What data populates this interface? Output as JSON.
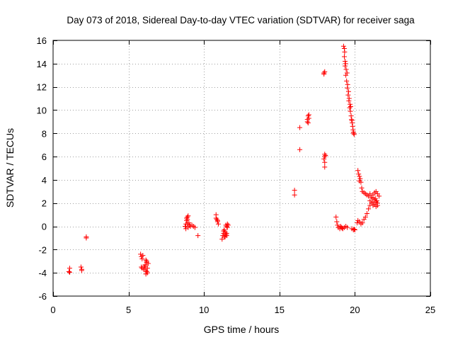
{
  "chart_data": {
    "type": "scatter",
    "title": "Day 073 of 2018, Sidereal Day-to-day VTEC variation (SDTVAR) for receiver saga",
    "xlabel": "GPS time / hours",
    "ylabel": "SDTVAR / TECUs",
    "xlim": [
      0,
      25
    ],
    "ylim": [
      -6,
      16
    ],
    "xticks": [
      0,
      5,
      10,
      15,
      20,
      25
    ],
    "yticks": [
      -6,
      -4,
      -2,
      0,
      2,
      4,
      6,
      8,
      10,
      12,
      14,
      16
    ],
    "xtick_labels": [
      "0",
      "5",
      "10",
      "15",
      "20",
      "25"
    ],
    "ytick_labels": [
      "-6",
      "-4",
      "-2",
      "0",
      "2",
      "4",
      "6",
      "8",
      "10",
      "12",
      "14",
      "16"
    ],
    "grid": true,
    "marker": "+",
    "color": "#ff0000",
    "series": [
      {
        "name": "SDTVAR",
        "x": [
          1.05,
          1.1,
          1.1,
          1.85,
          1.9,
          1.9,
          2.2,
          2.2,
          5.8,
          5.85,
          5.9,
          5.95,
          5.85,
          5.9,
          6.0,
          6.05,
          6.1,
          6.15,
          6.2,
          6.25,
          6.15,
          6.2,
          6.3,
          6.25,
          6.1,
          6.15,
          6.2,
          8.75,
          8.8,
          8.85,
          8.9,
          8.95,
          9.0,
          9.05,
          9.1,
          9.2,
          9.3,
          9.4,
          8.85,
          8.9,
          8.95,
          8.8,
          8.9,
          9.6,
          10.8,
          10.85,
          10.9,
          10.95,
          10.8,
          10.9,
          11.2,
          11.25,
          11.3,
          11.35,
          11.4,
          11.45,
          11.5,
          11.55,
          11.6,
          11.4,
          11.5,
          11.3,
          11.35,
          11.45,
          11.5,
          11.55,
          16.0,
          16.0,
          16.35,
          16.35,
          16.85,
          16.9,
          16.95,
          16.9,
          16.85,
          16.95,
          17.95,
          18.0,
          17.95,
          18.0,
          18.0,
          17.95,
          18.0,
          18.0,
          18.05,
          18.75,
          18.8,
          18.85,
          18.9,
          19.0,
          19.1,
          19.2,
          19.3,
          19.4,
          19.5,
          19.05,
          19.15,
          19.25,
          19.3,
          19.35,
          19.4,
          19.45,
          19.5,
          19.55,
          19.6,
          19.65,
          19.7,
          19.75,
          19.8,
          19.85,
          19.9,
          19.95,
          19.3,
          19.32,
          19.35,
          19.38,
          19.42,
          19.48,
          19.52,
          19.58,
          19.62,
          19.68,
          19.72,
          19.78,
          19.82,
          19.88,
          19.92,
          19.8,
          19.9,
          19.95,
          20.0,
          20.2,
          20.25,
          20.3,
          20.35,
          20.4,
          20.3,
          20.45,
          20.5,
          20.6,
          20.7,
          20.8,
          20.9,
          21.0,
          21.1,
          21.2,
          20.15,
          20.2,
          20.3,
          20.4,
          20.5,
          20.6,
          20.7,
          20.8,
          20.9,
          21.0,
          21.1,
          21.2,
          21.3,
          21.4,
          21.5,
          21.0,
          21.1,
          21.2,
          21.3,
          21.4,
          21.5,
          21.6,
          21.3,
          21.4,
          21.5,
          21.2,
          21.35,
          21.45
        ],
        "y": [
          -3.9,
          -3.6,
          -3.95,
          -3.5,
          -3.7,
          -3.8,
          -0.9,
          -1.0,
          -2.4,
          -2.6,
          -2.8,
          -2.5,
          -3.5,
          -3.6,
          -3.7,
          -3.5,
          -3.4,
          -3.8,
          -3.9,
          -4.0,
          -4.1,
          -3.1,
          -3.2,
          -3.6,
          -3.3,
          -2.9,
          -3.0,
          0.0,
          0.2,
          0.5,
          0.8,
          0.9,
          0.3,
          0.1,
          0.0,
          0.1,
          0.0,
          -0.1,
          0.7,
          0.6,
          -0.1,
          -0.2,
          0.2,
          -0.8,
          1.0,
          0.6,
          0.4,
          0.2,
          0.7,
          0.5,
          -1.1,
          -0.8,
          -0.6,
          -0.3,
          -0.5,
          -0.7,
          0.0,
          0.2,
          0.1,
          -0.9,
          -0.6,
          -0.4,
          -0.9,
          0.1,
          -0.8,
          -0.1,
          3.1,
          2.7,
          8.5,
          6.6,
          9.2,
          9.5,
          9.3,
          8.9,
          9.0,
          9.6,
          13.2,
          13.3,
          13.1,
          6.2,
          6.0,
          5.8,
          5.5,
          5.1,
          6.1,
          0.8,
          0.4,
          0.1,
          -0.1,
          -0.2,
          -0.1,
          -0.2,
          -0.1,
          0.0,
          -0.1,
          0.0,
          -0.15,
          15.5,
          14.6,
          13.8,
          13.0,
          12.5,
          11.9,
          11.3,
          10.8,
          10.2,
          9.9,
          9.5,
          9.1,
          8.6,
          8.1,
          7.9,
          15.3,
          15.0,
          14.2,
          14.0,
          13.5,
          13.2,
          12.2,
          11.6,
          11.0,
          10.5,
          10.3,
          9.2,
          8.9,
          8.3,
          8.0,
          -0.2,
          -0.3,
          -0.25,
          -0.3,
          4.8,
          4.5,
          4.3,
          4.1,
          3.8,
          3.9,
          3.3,
          3.0,
          2.9,
          2.8,
          2.7,
          2.6,
          2.8,
          2.5,
          2.4,
          0.3,
          0.5,
          0.4,
          0.2,
          0.3,
          0.6,
          0.8,
          1.1,
          1.5,
          1.8,
          2.0,
          2.1,
          1.9,
          1.7,
          1.8,
          2.2,
          2.5,
          2.7,
          2.9,
          3.0,
          2.8,
          2.6,
          2.3,
          2.1,
          2.0,
          1.8,
          2.4,
          2.2
        ]
      }
    ]
  }
}
